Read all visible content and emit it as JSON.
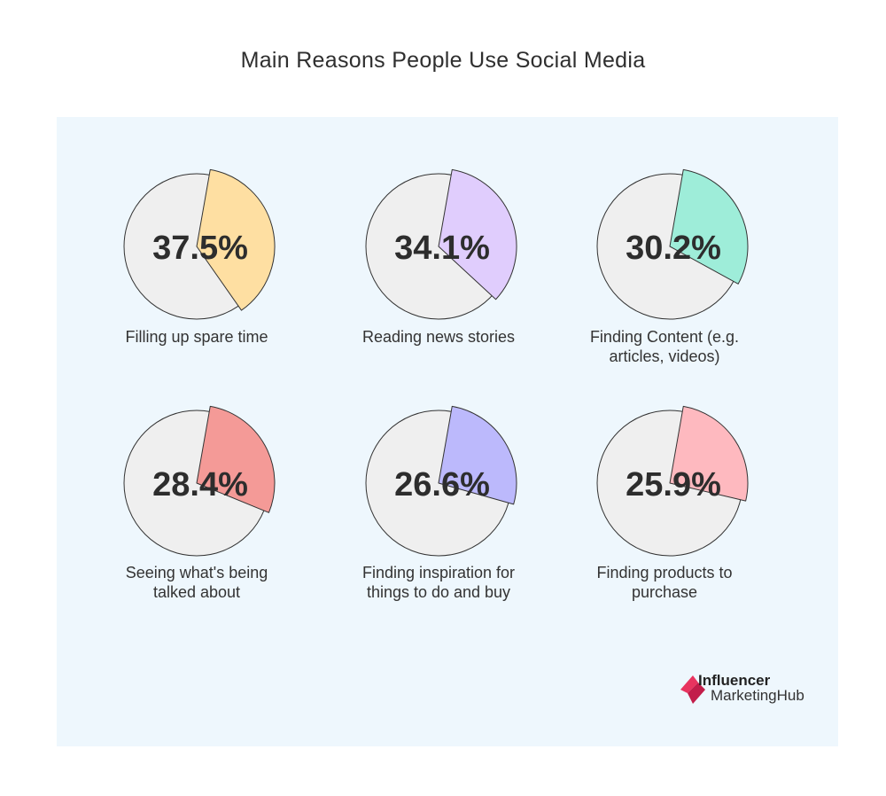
{
  "title": "Main Reasons People Use Social Media",
  "logo": {
    "line1": "Influencer",
    "line2": "MarketingHub",
    "mark_color": "#e8345f"
  },
  "chart_data": {
    "type": "pie",
    "title": "Main Reasons People Use Social Media",
    "unit": "%",
    "items": [
      {
        "label": "Filling up spare time",
        "value": 37.5,
        "value_label": "37.5%",
        "color": "#fedfa2"
      },
      {
        "label": "Reading news stories",
        "value": 34.1,
        "value_label": "34.1%",
        "color": "#e0cdfd"
      },
      {
        "label": "Finding Content (e.g. articles, videos)",
        "value": 30.2,
        "value_label": "30.2%",
        "color": "#9eedd9"
      },
      {
        "label": "Seeing what's being talked about",
        "value": 28.4,
        "value_label": "28.4%",
        "color": "#f49a97"
      },
      {
        "label": "Finding inspiration for things to do and buy",
        "value": 26.6,
        "value_label": "26.6%",
        "color": "#bcb9fc"
      },
      {
        "label": "Finding products to purchase",
        "value": 25.9,
        "value_label": "25.9%",
        "color": "#feb9bf"
      }
    ],
    "remainder_color": "#efefef"
  }
}
